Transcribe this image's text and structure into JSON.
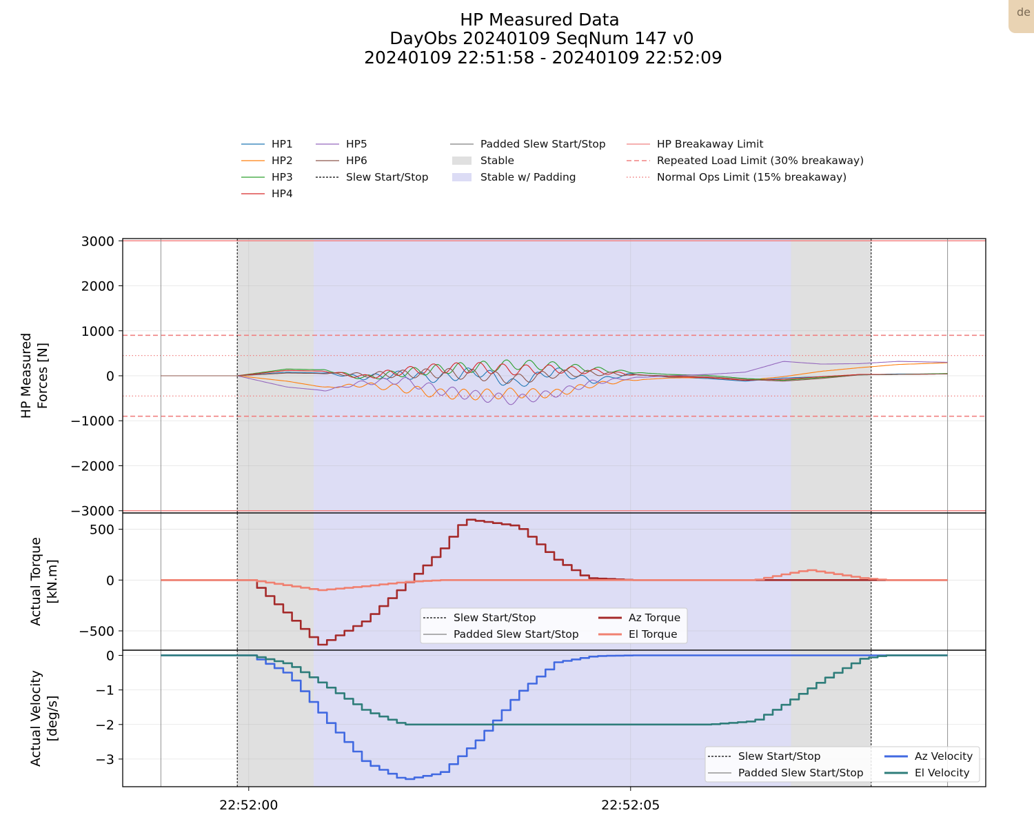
{
  "corner_tab": {
    "label": "de"
  },
  "figure": {
    "title_lines": [
      "HP Measured Data",
      "DayObs 20240109 SeqNum 147 v0",
      "20240109 22:51:58 - 20240109 22:52:09"
    ]
  },
  "legend_main": {
    "entries": [
      {
        "label": "HP1",
        "color": "#1f77b4",
        "style": "line"
      },
      {
        "label": "HP2",
        "color": "#ff7f0e",
        "style": "line"
      },
      {
        "label": "HP3",
        "color": "#2ca02c",
        "style": "line"
      },
      {
        "label": "HP4",
        "color": "#d62728",
        "style": "line"
      },
      {
        "label": "HP5",
        "color": "#9467bd",
        "style": "line"
      },
      {
        "label": "HP6",
        "color": "#8c564b",
        "style": "line"
      },
      {
        "label": "Slew Start/Stop",
        "color": "#000000",
        "style": "dash"
      },
      {
        "label": "Padded Slew Start/Stop",
        "color": "#808080",
        "style": "line"
      },
      {
        "label": "Stable",
        "color": "#e0e0e0",
        "style": "patch"
      },
      {
        "label": "Stable w/ Padding",
        "color": "#dcdcf5",
        "style": "patch"
      },
      {
        "label": "HP Breakaway Limit",
        "color": "#f08080",
        "style": "line"
      },
      {
        "label": "Repeated Load Limit (30% breakaway)",
        "color": "#f08080",
        "style": "dash"
      },
      {
        "label": "Normal Ops Limit (15% breakaway)",
        "color": "#f08080",
        "style": "dot"
      }
    ]
  },
  "legend_torque": {
    "entries": [
      {
        "label": "Slew Start/Stop",
        "color": "#000000",
        "style": "dash"
      },
      {
        "label": "Padded Slew Start/Stop",
        "color": "#808080",
        "style": "line"
      },
      {
        "label": "Az Torque",
        "color": "#a52a2a",
        "style": "thick"
      },
      {
        "label": "El Torque",
        "color": "#f08070",
        "style": "thick"
      }
    ]
  },
  "legend_velocity": {
    "entries": [
      {
        "label": "Slew Start/Stop",
        "color": "#000000",
        "style": "dash"
      },
      {
        "label": "Padded Slew Start/Stop",
        "color": "#808080",
        "style": "line"
      },
      {
        "label": "Az Velocity",
        "color": "#4169e1",
        "style": "thick"
      },
      {
        "label": "El Velocity",
        "color": "#2e7d7a",
        "style": "thick"
      }
    ]
  },
  "chart_data": [
    {
      "type": "line",
      "panel": "forces",
      "ylabel": [
        "HP Measured",
        "Forces [N]"
      ],
      "ylim": [
        -3050,
        3050
      ],
      "yticks": [
        3000,
        2000,
        1000,
        0,
        -1000,
        -2000,
        -3000
      ],
      "ytick_labels": [
        "3000",
        "2000",
        "1000",
        "0",
        "−1000",
        "−2000",
        "−3000"
      ],
      "x_range_s": [
        -1.65,
        9.65
      ],
      "x_ticks": [
        {
          "t": 0,
          "label": "22:52:00"
        },
        {
          "t": 5,
          "label": "22:52:05"
        }
      ],
      "grid": true,
      "bands": [
        {
          "name": "Stable",
          "x0": -0.15,
          "x1": 8.15,
          "color": "#e0e0e0"
        },
        {
          "name": "Stable w/ Padding",
          "x0": 0.85,
          "x1": 7.1,
          "color": "#dcdcf5"
        }
      ],
      "vlines": [
        {
          "name": "Slew Start/Stop",
          "x": -0.15,
          "style": "dash"
        },
        {
          "name": "Slew Start/Stop",
          "x": 8.15,
          "style": "dash"
        },
        {
          "name": "Padded Slew Start/Stop",
          "x": -1.15,
          "style": "line"
        },
        {
          "name": "Padded Slew Start/Stop",
          "x": 9.15,
          "style": "line"
        }
      ],
      "hlines": [
        {
          "name": "HP Breakaway Limit",
          "y": 3000,
          "style": "line"
        },
        {
          "name": "HP Breakaway Limit",
          "y": -3000,
          "style": "line"
        },
        {
          "name": "Repeated Load Limit (30% breakaway)",
          "y": 900,
          "style": "dash"
        },
        {
          "name": "Repeated Load Limit (30% breakaway)",
          "y": -900,
          "style": "dash"
        },
        {
          "name": "Normal Ops Limit (15% breakaway)",
          "y": 450,
          "style": "dot"
        },
        {
          "name": "Normal Ops Limit (15% breakaway)",
          "y": -450,
          "style": "dot"
        }
      ],
      "series": [
        {
          "name": "HP1",
          "color": "#1f77b4",
          "x": [
            -1.15,
            -0.15,
            0.5,
            1.0,
            1.5,
            2.0,
            2.5,
            3.0,
            3.5,
            4.0,
            4.5,
            5.0,
            5.5,
            6.0,
            6.5,
            7.0,
            7.5,
            8.0,
            8.5,
            9.15
          ],
          "y": [
            0,
            0,
            80,
            60,
            -40,
            30,
            -60,
            100,
            -200,
            120,
            -120,
            40,
            -30,
            -60,
            -120,
            -50,
            -20,
            20,
            40,
            40
          ]
        },
        {
          "name": "HP2",
          "color": "#ff7f0e",
          "x": [
            -1.15,
            -0.15,
            0.5,
            1.0,
            1.5,
            2.0,
            2.5,
            3.0,
            3.5,
            4.0,
            4.5,
            5.0,
            5.5,
            6.0,
            6.5,
            7.0,
            7.5,
            8.0,
            8.5,
            9.15
          ],
          "y": [
            0,
            0,
            -120,
            -260,
            -200,
            -280,
            -400,
            -420,
            -380,
            -400,
            -200,
            -100,
            -50,
            -40,
            -100,
            -20,
            100,
            180,
            250,
            290
          ]
        },
        {
          "name": "HP3",
          "color": "#2ca02c",
          "x": [
            -1.15,
            -0.15,
            0.5,
            1.0,
            1.5,
            2.0,
            2.5,
            3.0,
            3.5,
            4.0,
            4.5,
            5.0,
            5.5,
            6.0,
            6.5,
            7.0,
            7.5,
            8.0,
            8.5,
            9.15
          ],
          "y": [
            0,
            0,
            150,
            130,
            -50,
            60,
            150,
            200,
            250,
            220,
            150,
            80,
            30,
            10,
            -60,
            -100,
            -40,
            20,
            30,
            50
          ]
        },
        {
          "name": "HP4",
          "color": "#d62728",
          "x": [
            -1.15,
            -0.15,
            0.5,
            1.0,
            1.5,
            2.0,
            2.5,
            3.0,
            3.5,
            4.0,
            4.5,
            5.0,
            5.5,
            6.0,
            6.5,
            7.0,
            7.5,
            8.0,
            8.5,
            9.15
          ],
          "y": [
            0,
            0,
            120,
            100,
            -30,
            100,
            170,
            180,
            130,
            150,
            100,
            30,
            -20,
            -40,
            -100,
            -80,
            -20,
            30,
            30,
            40
          ]
        },
        {
          "name": "HP5",
          "color": "#9467bd",
          "x": [
            -1.15,
            -0.15,
            0.5,
            1.0,
            1.5,
            2.0,
            2.5,
            3.0,
            3.5,
            4.0,
            4.5,
            5.0,
            5.5,
            6.0,
            6.5,
            7.0,
            7.5,
            8.0,
            8.5,
            9.15
          ],
          "y": [
            0,
            0,
            -250,
            -330,
            -150,
            -100,
            -320,
            -450,
            -540,
            -400,
            -150,
            -50,
            0,
            30,
            80,
            320,
            260,
            270,
            320,
            300
          ]
        },
        {
          "name": "HP6",
          "color": "#8c564b",
          "x": [
            -1.15,
            -0.15,
            0.5,
            1.0,
            1.5,
            2.0,
            2.5,
            3.0,
            3.5,
            4.0,
            4.5,
            5.0,
            5.5,
            6.0,
            6.5,
            7.0,
            7.5,
            8.0,
            8.5,
            9.15
          ],
          "y": [
            0,
            0,
            60,
            50,
            20,
            40,
            60,
            20,
            -80,
            40,
            60,
            20,
            0,
            -20,
            -80,
            -120,
            -60,
            20,
            30,
            40
          ]
        }
      ]
    },
    {
      "type": "line",
      "panel": "torque",
      "ylabel": [
        "Actual Torque",
        "[kN.m]"
      ],
      "ylim": [
        -690,
        660
      ],
      "yticks": [
        500,
        0,
        -500
      ],
      "ytick_labels": [
        "500",
        "0",
        "−500"
      ],
      "legend_position": "lower center",
      "series": [
        {
          "name": "Az Torque",
          "color": "#a52a2a",
          "x": [
            -1.15,
            -0.15,
            0.0,
            0.85,
            0.9,
            1.5,
            2.0,
            2.5,
            2.8,
            3.5,
            4.0,
            4.4,
            5.0,
            6.0,
            7.0,
            8.5,
            9.15
          ],
          "y": [
            0,
            0,
            0,
            -600,
            -640,
            -400,
            -60,
            300,
            600,
            530,
            200,
            20,
            0,
            0,
            0,
            0,
            0
          ]
        },
        {
          "name": "El Torque",
          "color": "#f08070",
          "x": [
            -1.15,
            -0.15,
            0.0,
            0.9,
            1.5,
            2.0,
            2.5,
            3.0,
            4.0,
            5.0,
            6.0,
            6.6,
            7.0,
            7.3,
            8.0,
            8.3,
            9.15
          ],
          "y": [
            0,
            0,
            0,
            -100,
            -60,
            -20,
            0,
            0,
            0,
            0,
            0,
            0,
            60,
            100,
            20,
            0,
            0
          ]
        }
      ]
    },
    {
      "type": "line",
      "panel": "velocity",
      "ylabel": [
        "Actual Velocity",
        "[deg/s]"
      ],
      "ylim": [
        -3.8,
        0.15
      ],
      "yticks": [
        0,
        -1,
        -2,
        -3
      ],
      "ytick_labels": [
        "0",
        "−1",
        "−2",
        "−3"
      ],
      "x_tick_labels": [
        "22:52:00",
        "22:52:05"
      ],
      "legend_position": "lower right",
      "series": [
        {
          "name": "Az Velocity",
          "color": "#4169e1",
          "x": [
            -1.15,
            -0.15,
            0.0,
            0.5,
            1.0,
            1.5,
            2.0,
            2.5,
            3.0,
            3.5,
            4.0,
            4.5,
            5.0,
            7.0,
            9.15
          ],
          "y": [
            0,
            0,
            0,
            -0.55,
            -1.9,
            -3.1,
            -3.6,
            -3.4,
            -2.4,
            -1.1,
            -0.2,
            -0.02,
            0,
            0,
            0
          ]
        },
        {
          "name": "El Velocity",
          "color": "#2e7d7a",
          "x": [
            -1.15,
            -0.15,
            0.0,
            0.5,
            1.0,
            1.5,
            2.0,
            3.0,
            4.0,
            5.0,
            6.0,
            6.6,
            7.0,
            7.5,
            8.0,
            8.3,
            9.15
          ],
          "y": [
            0,
            0,
            0,
            -0.25,
            -0.9,
            -1.6,
            -2.0,
            -2.0,
            -2.0,
            -2.0,
            -2.0,
            -1.9,
            -1.4,
            -0.7,
            -0.1,
            0,
            0
          ]
        }
      ]
    }
  ]
}
